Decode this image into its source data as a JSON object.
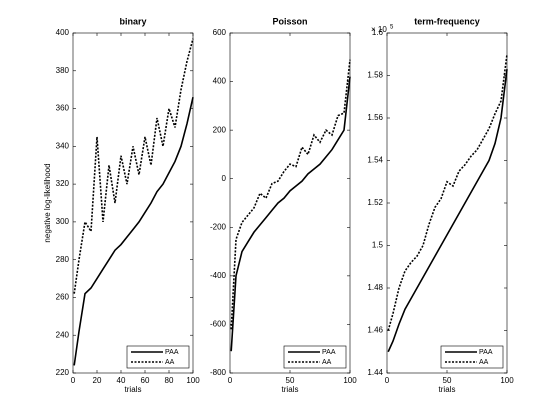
{
  "chart_data": [
    {
      "type": "line",
      "title": "binary",
      "ylabel": "negative log-likelihood",
      "xlabel": "trials",
      "x": [
        1,
        5,
        10,
        15,
        20,
        25,
        30,
        35,
        40,
        45,
        50,
        55,
        60,
        65,
        70,
        75,
        80,
        85,
        90,
        95,
        100
      ],
      "series": [
        {
          "name": "PAA",
          "color": "#000000",
          "style": "solid",
          "values": [
            224,
            242,
            262,
            265,
            270,
            275,
            280,
            285,
            288,
            292,
            296,
            300,
            305,
            310,
            316,
            320,
            326,
            332,
            340,
            352,
            366
          ]
        },
        {
          "name": "AA",
          "color": "#000000",
          "style": "dotted",
          "values": [
            262,
            280,
            300,
            295,
            345,
            300,
            330,
            310,
            335,
            320,
            340,
            325,
            345,
            330,
            355,
            340,
            360,
            350,
            370,
            385,
            397
          ]
        }
      ],
      "xlim": [
        0,
        100
      ],
      "xticks": [
        0,
        20,
        40,
        60,
        80,
        100
      ],
      "ylim": [
        220,
        400
      ],
      "yticks": [
        220,
        240,
        260,
        280,
        300,
        320,
        340,
        360,
        380,
        400
      ],
      "legend": "lower right"
    },
    {
      "type": "line",
      "title": "Poisson",
      "xlabel": "trials",
      "x": [
        1,
        5,
        10,
        15,
        20,
        25,
        30,
        35,
        40,
        45,
        50,
        55,
        60,
        65,
        70,
        75,
        80,
        85,
        90,
        95,
        100
      ],
      "series": [
        {
          "name": "PAA",
          "color": "#000000",
          "style": "solid",
          "values": [
            -710,
            -400,
            -300,
            -260,
            -220,
            -190,
            -160,
            -130,
            -100,
            -80,
            -50,
            -30,
            -10,
            20,
            40,
            60,
            90,
            120,
            160,
            200,
            420
          ]
        },
        {
          "name": "AA",
          "color": "#000000",
          "style": "dotted",
          "values": [
            -620,
            -250,
            -180,
            -150,
            -120,
            -60,
            -80,
            -20,
            -10,
            30,
            60,
            50,
            130,
            100,
            180,
            150,
            200,
            180,
            260,
            270,
            490
          ]
        }
      ],
      "xlim": [
        0,
        100
      ],
      "xticks": [
        0,
        50,
        100
      ],
      "ylim": [
        -800,
        600
      ],
      "yticks": [
        -800,
        -600,
        -400,
        -200,
        0,
        200,
        400,
        600
      ],
      "legend": "lower right"
    },
    {
      "type": "line",
      "title": "term-frequency",
      "xlabel": "trials",
      "y_multiplier": "× 10",
      "y_exponent": "5",
      "x": [
        1,
        5,
        10,
        15,
        20,
        25,
        30,
        35,
        40,
        45,
        50,
        55,
        60,
        65,
        70,
        75,
        80,
        85,
        90,
        95,
        100
      ],
      "series": [
        {
          "name": "PAA",
          "color": "#000000",
          "style": "solid",
          "values": [
            1.45,
            1.455,
            1.463,
            1.47,
            1.475,
            1.48,
            1.485,
            1.49,
            1.495,
            1.5,
            1.505,
            1.51,
            1.515,
            1.52,
            1.525,
            1.53,
            1.535,
            1.54,
            1.548,
            1.56,
            1.583
          ]
        },
        {
          "name": "AA",
          "color": "#000000",
          "style": "dotted",
          "values": [
            1.46,
            1.468,
            1.48,
            1.488,
            1.492,
            1.495,
            1.5,
            1.51,
            1.518,
            1.522,
            1.53,
            1.528,
            1.535,
            1.538,
            1.542,
            1.545,
            1.55,
            1.555,
            1.562,
            1.568,
            1.59
          ]
        }
      ],
      "xlim": [
        0,
        100
      ],
      "xticks": [
        0,
        50,
        100
      ],
      "ylim": [
        1.44,
        1.6
      ],
      "yticks": [
        1.44,
        1.46,
        1.48,
        1.5,
        1.52,
        1.54,
        1.56,
        1.58,
        1.6
      ],
      "legend": "lower right"
    }
  ]
}
